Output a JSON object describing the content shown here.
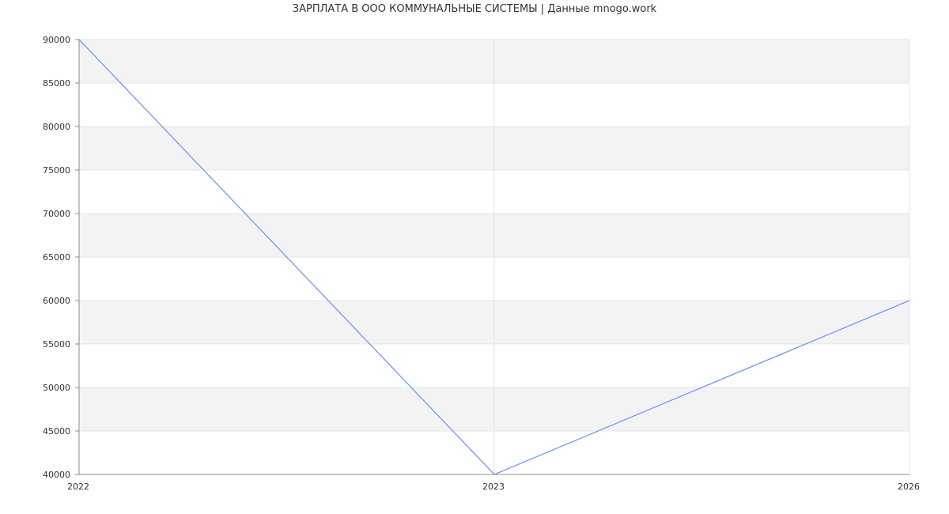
{
  "chart_data": {
    "type": "line",
    "title": "ЗАРПЛАТА В ООО КОММУНАЛЬНЫЕ СИСТЕМЫ | Данные mnogo.work",
    "categories": [
      "2022",
      "2023",
      "2026"
    ],
    "series": [
      {
        "values": [
          90000,
          40000,
          60000
        ],
        "color": "#6f9af0"
      }
    ],
    "ylim": [
      40000,
      90000
    ],
    "yticks": [
      40000,
      45000,
      50000,
      55000,
      60000,
      65000,
      70000,
      75000,
      80000,
      85000,
      90000
    ],
    "grid": true,
    "band_color": "#f3f3f3",
    "xlabel": "",
    "ylabel": ""
  }
}
